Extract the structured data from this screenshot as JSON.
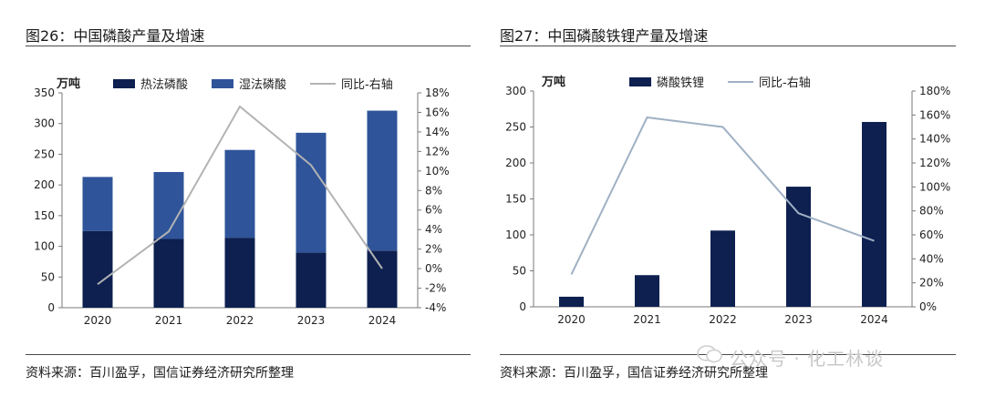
{
  "charts": [
    {
      "figure_title": "图26：中国磷酸产量及增速",
      "source": "资料来源：百川盈孚，国信证券经济研究所整理",
      "unit_label": "万吨",
      "legend": [
        "热法磷酸",
        "湿法磷酸",
        "同比-右轴"
      ],
      "y_ticks": [
        "350",
        "300",
        "250",
        "200",
        "150",
        "100",
        "50",
        "0"
      ],
      "y2_ticks": [
        "18%",
        "16%",
        "14%",
        "12%",
        "10%",
        "8%",
        "6%",
        "4%",
        "2%",
        "0%",
        "-2%",
        "-4%"
      ],
      "x_labels": [
        "2020",
        "2021",
        "2022",
        "2023",
        "2024"
      ]
    },
    {
      "figure_title": "图27：中国磷酸铁锂产量及增速",
      "source": "资料来源：百川盈孚，国信证券经济研究所整理",
      "unit_label": "万吨",
      "legend": [
        "磷酸铁锂",
        "同比-右轴"
      ],
      "y_ticks": [
        "300",
        "250",
        "200",
        "150",
        "100",
        "50",
        "0"
      ],
      "y2_ticks": [
        "180%",
        "160%",
        "140%",
        "120%",
        "100%",
        "80%",
        "60%",
        "40%",
        "20%",
        "0%"
      ],
      "x_labels": [
        "2020",
        "2021",
        "2022",
        "2023",
        "2024"
      ]
    }
  ],
  "watermark": "公众号 · 化工林谈",
  "chart_data": [
    {
      "type": "bar",
      "stacked": true,
      "categories": [
        "2020",
        "2021",
        "2022",
        "2023",
        "2024"
      ],
      "series": [
        {
          "name": "热法磷酸",
          "values": [
            125,
            112,
            114,
            90,
            93
          ],
          "color": "#0d2050"
        },
        {
          "name": "湿法磷酸",
          "values": [
            88,
            109,
            143,
            195,
            228
          ],
          "color": "#2f549a"
        },
        {
          "name": "同比-右轴",
          "type": "line",
          "axis": "right",
          "values": [
            -1.6,
            3.8,
            16.6,
            10.6,
            0.0
          ],
          "color": "#b3b3b3"
        }
      ],
      "ylabel": "万吨",
      "ylim": [
        0,
        350
      ],
      "y2lim": [
        -4,
        18
      ],
      "y2_unit": "%",
      "grid": false,
      "legend_position": "top"
    },
    {
      "type": "bar",
      "categories": [
        "2020",
        "2021",
        "2022",
        "2023",
        "2024"
      ],
      "series": [
        {
          "name": "磷酸铁锂",
          "values": [
            14,
            44,
            106,
            167,
            257
          ],
          "color": "#0d2050"
        },
        {
          "name": "同比-右轴",
          "type": "line",
          "axis": "right",
          "values": [
            27,
            158,
            150,
            78,
            55
          ],
          "color": "#9fb1c3"
        }
      ],
      "ylabel": "万吨",
      "ylim": [
        0,
        300
      ],
      "y2lim": [
        0,
        180
      ],
      "y2_unit": "%",
      "grid": false,
      "legend_position": "top"
    }
  ]
}
